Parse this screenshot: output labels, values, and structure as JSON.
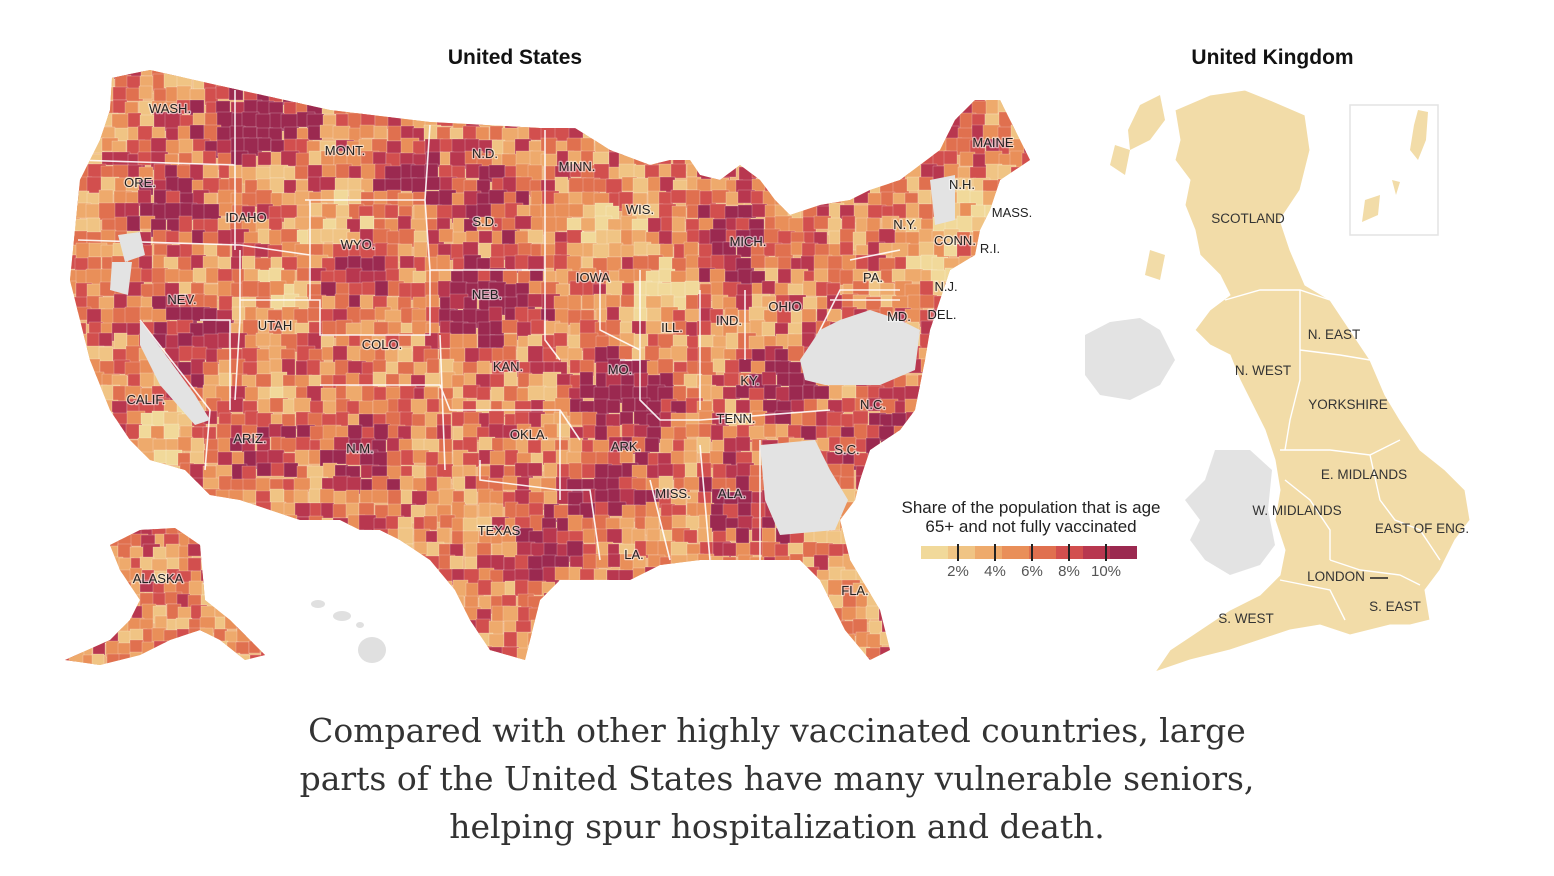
{
  "titles": {
    "us": "United States",
    "uk": "United Kingdom"
  },
  "us_labels": [
    "WASH.",
    "MONT.",
    "N.D.",
    "MINN.",
    "MAINE",
    "ORE.",
    "IDAHO",
    "S.D.",
    "WYO.",
    "WIS.",
    "MICH.",
    "N.Y.",
    "N.H.",
    "MASS.",
    "CONN.",
    "R.I.",
    "NEB.",
    "IOWA",
    "PA.",
    "N.J.",
    "NEV.",
    "UTAH",
    "COLO.",
    "ILL.",
    "IND.",
    "OHIO",
    "MD.",
    "DEL.",
    "KAN.",
    "MO.",
    "KY.",
    "CALIF.",
    "ARIZ.",
    "N.M.",
    "OKLA.",
    "ARK.",
    "TENN.",
    "N.C.",
    "S.C.",
    "MISS.",
    "ALA.",
    "TEXAS",
    "LA.",
    "FLA.",
    "ALASKA"
  ],
  "uk_labels": [
    "SCOTLAND",
    "N. EAST",
    "N. WEST",
    "YORKSHIRE",
    "E. MIDLANDS",
    "W. MIDLANDS",
    "EAST OF ENG.",
    "LONDON",
    "S. EAST",
    "S. WEST"
  ],
  "legend": {
    "title_line1": "Share of the population that is age",
    "title_line2": "65+ and not fully vaccinated",
    "scale_colors": [
      "#f1d99a",
      "#f0c484",
      "#eeaa6c",
      "#e98f59",
      "#e0704f",
      "#d24f4e",
      "#b8374f",
      "#9b2950"
    ],
    "ticks": [
      "2%",
      "4%",
      "6%",
      "8%",
      "10%"
    ]
  },
  "colors": {
    "us_low": "#f3d9a3",
    "us_mid": "#e9935d",
    "us_high": "#a82f56",
    "uk_fill": "#f2dca8",
    "no_data": "#e3e3e3"
  },
  "caption": {
    "line1": "Compared with other highly vaccinated countries, large",
    "line2": "parts of the United States have many vulnerable seniors,",
    "line3": "helping spur hospitalization and death."
  }
}
